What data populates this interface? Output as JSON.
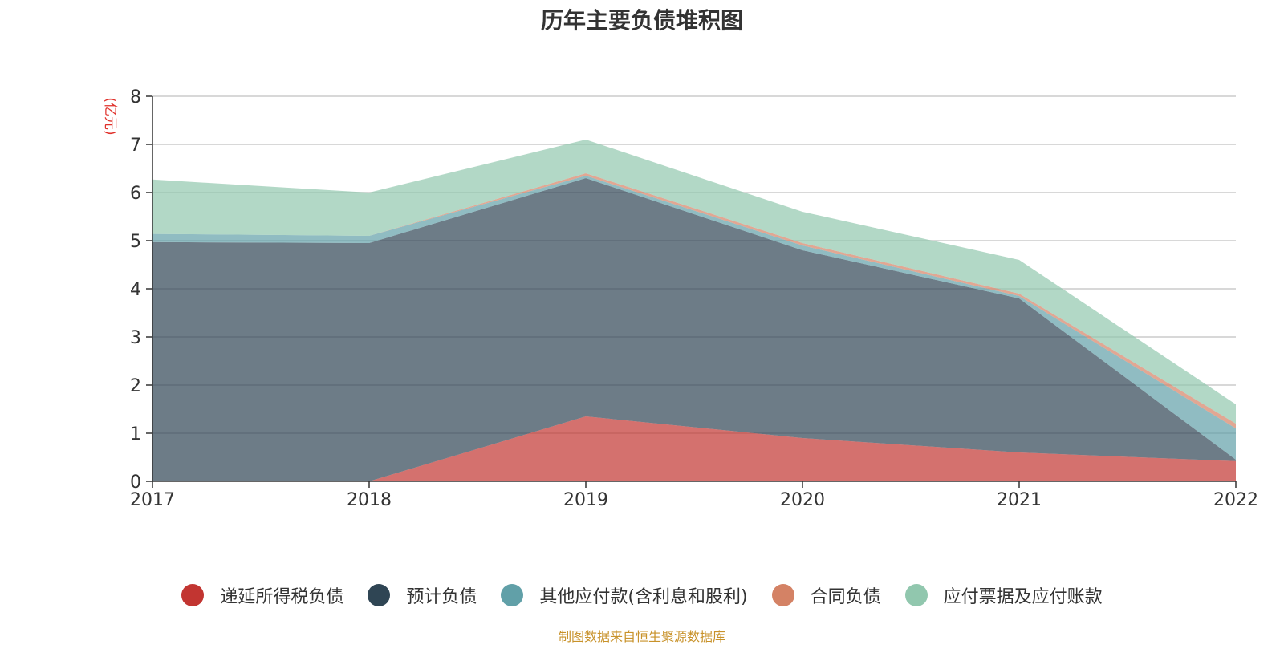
{
  "title": "历年主要负债堆积图",
  "source": "制图数据来自恒生聚源数据库",
  "chart_data": {
    "type": "area",
    "stacked": true,
    "categories": [
      "2017",
      "2018",
      "2019",
      "2020",
      "2021",
      "2022"
    ],
    "ylabel": "(亿元)",
    "ylim": [
      0,
      8
    ],
    "yticks": [
      0,
      1,
      2,
      3,
      4,
      5,
      6,
      7,
      8
    ],
    "grid": true,
    "legend_position": "bottom",
    "series": [
      {
        "name": "递延所得税负债",
        "color": "#c23531",
        "values": [
          0,
          0,
          1.35,
          0.9,
          0.6,
          0.42
        ]
      },
      {
        "name": "预计负债",
        "color": "#2f4554",
        "values": [
          4.97,
          4.95,
          4.95,
          3.9,
          3.2,
          0.03
        ]
      },
      {
        "name": "其他应付款(含利息和股利)",
        "color": "#61a0a8",
        "values": [
          0.17,
          0.15,
          0.05,
          0.1,
          0.05,
          0.65
        ]
      },
      {
        "name": "合同负债",
        "color": "#d48265",
        "values": [
          0,
          0,
          0.05,
          0.05,
          0.05,
          0.1
        ]
      },
      {
        "name": "应付票据及应付账款",
        "color": "#91c7ae",
        "values": [
          1.13,
          0.9,
          0.7,
          0.65,
          0.7,
          0.4
        ]
      }
    ]
  }
}
